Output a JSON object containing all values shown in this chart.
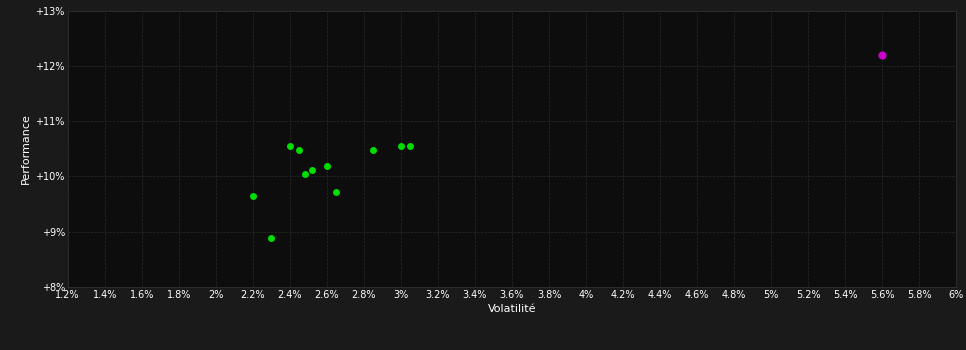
{
  "background_color": "#1a1a1a",
  "plot_bg_color": "#0d0d0d",
  "grid_color": "#2a2a2a",
  "xlabel": "Volatilité",
  "ylabel": "Performance",
  "text_color": "#ffffff",
  "tick_color": "#ffffff",
  "xlim": [
    0.012,
    0.06
  ],
  "ylim": [
    0.08,
    0.13
  ],
  "xticks": [
    0.012,
    0.014,
    0.016,
    0.018,
    0.02,
    0.022,
    0.024,
    0.026,
    0.028,
    0.03,
    0.032,
    0.034,
    0.036,
    0.038,
    0.04,
    0.042,
    0.044,
    0.046,
    0.048,
    0.05,
    0.052,
    0.054,
    0.056,
    0.058,
    0.06
  ],
  "yticks": [
    0.08,
    0.09,
    0.1,
    0.11,
    0.12,
    0.13
  ],
  "green_points": [
    [
      0.022,
      0.0965
    ],
    [
      0.023,
      0.0888
    ],
    [
      0.024,
      0.1055
    ],
    [
      0.0245,
      0.1048
    ],
    [
      0.0248,
      0.1005
    ],
    [
      0.0252,
      0.1012
    ],
    [
      0.026,
      0.1018
    ],
    [
      0.0265,
      0.0972
    ],
    [
      0.0285,
      0.1048
    ],
    [
      0.03,
      0.1055
    ],
    [
      0.0305,
      0.1055
    ]
  ],
  "magenta_point": [
    0.056,
    0.122
  ],
  "green_color": "#00dd00",
  "magenta_color": "#cc00cc",
  "marker_size": 5
}
